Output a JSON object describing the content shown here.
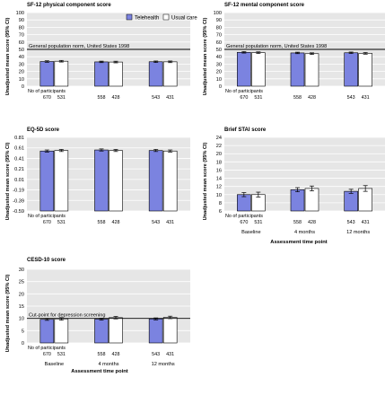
{
  "colors": {
    "telehealth": "#7b83e0",
    "usual_care": "#ffffff",
    "panel_bg": "#e6e6e6",
    "gridline": "#ffffff"
  },
  "legend": {
    "telehealth": "Telehealth",
    "usual_care": "Usual care"
  },
  "n_label": "No of participants",
  "chart_data": [
    {
      "type": "bar",
      "title": "SF-12 physical component score",
      "ylabel": "Unadjusted mean score (95% CI)",
      "ylim": [
        0,
        100
      ],
      "yticks": [
        "0",
        "10",
        "20",
        "30",
        "40",
        "50",
        "60",
        "70",
        "80",
        "90",
        "100"
      ],
      "categories": [
        "Baseline",
        "4 months",
        "12 months"
      ],
      "series": [
        {
          "name": "Telehealth",
          "values": [
            33.5,
            33.0,
            33.2
          ],
          "err": [
            1.0,
            1.0,
            1.0
          ]
        },
        {
          "name": "Usual care",
          "values": [
            33.9,
            32.8,
            33.1
          ],
          "err": [
            1.1,
            1.1,
            1.1
          ]
        }
      ],
      "n": [
        [
          "670",
          "531"
        ],
        [
          "558",
          "428"
        ],
        [
          "543",
          "431"
        ]
      ],
      "reference_line": {
        "value": 50,
        "label": "General population norm, United States 1998"
      },
      "show_category_labels": false
    },
    {
      "type": "bar",
      "title": "SF-12 mental component score",
      "ylabel": "Unadjusted mean score (95% CI)",
      "ylim": [
        0,
        100
      ],
      "yticks": [
        "0",
        "10",
        "20",
        "30",
        "40",
        "50",
        "60",
        "70",
        "80",
        "90",
        "100"
      ],
      "categories": [
        "Baseline",
        "4 months",
        "12 months"
      ],
      "series": [
        {
          "name": "Telehealth",
          "values": [
            46.0,
            45.2,
            45.4
          ],
          "err": [
            1.0,
            1.0,
            1.0
          ]
        },
        {
          "name": "Usual care",
          "values": [
            45.5,
            44.2,
            44.6
          ],
          "err": [
            1.1,
            1.1,
            1.1
          ]
        }
      ],
      "n": [
        [
          "670",
          "531"
        ],
        [
          "558",
          "428"
        ],
        [
          "543",
          "431"
        ]
      ],
      "reference_line": {
        "value": 50,
        "label": "General population norm, United States 1998"
      },
      "show_category_labels": false
    },
    {
      "type": "bar",
      "title": "EQ-5D score",
      "ylabel": "Unadjusted mean score (95% CI)",
      "ylim": [
        -0.59,
        0.81
      ],
      "yticks": [
        "0.81",
        "0.61",
        "0.41",
        "0.21",
        "0.01",
        "-0.19",
        "-0.39",
        "-0.59"
      ],
      "baseline_value": -0.59,
      "categories": [
        "Baseline",
        "4 months",
        "12 months"
      ],
      "series": [
        {
          "name": "Telehealth",
          "values": [
            0.55,
            0.57,
            0.56
          ],
          "err": [
            0.02,
            0.02,
            0.02
          ]
        },
        {
          "name": "Usual care",
          "values": [
            0.56,
            0.56,
            0.55
          ],
          "err": [
            0.02,
            0.02,
            0.02
          ]
        }
      ],
      "n": [
        [
          "670",
          "531"
        ],
        [
          "558",
          "428"
        ],
        [
          "543",
          "431"
        ]
      ],
      "show_category_labels": false
    },
    {
      "type": "bar",
      "title": "Brief STAI score",
      "ylabel": "Unadjusted mean score (95% CI)",
      "ylim": [
        6,
        24
      ],
      "yticks": [
        "6",
        "8",
        "10",
        "12",
        "14",
        "16",
        "18",
        "20",
        "22",
        "24"
      ],
      "categories": [
        "Baseline",
        "4 months",
        "12 months"
      ],
      "series": [
        {
          "name": "Telehealth",
          "values": [
            10.0,
            11.2,
            10.8
          ],
          "err": [
            0.5,
            0.5,
            0.5
          ]
        },
        {
          "name": "Usual care",
          "values": [
            10.0,
            11.5,
            11.5
          ],
          "err": [
            0.6,
            0.6,
            0.7
          ]
        }
      ],
      "n": [
        [
          "670",
          "531"
        ],
        [
          "558",
          "428"
        ],
        [
          "543",
          "431"
        ]
      ],
      "xlabel": "Assessment time point",
      "show_category_labels": true
    },
    {
      "type": "bar",
      "title": "CESD-10 score",
      "ylabel": "Unadjusted mean score (95% CI)",
      "ylim": [
        0,
        30
      ],
      "yticks": [
        "0",
        "5",
        "10",
        "15",
        "20",
        "25",
        "30"
      ],
      "categories": [
        "Baseline",
        "4 months",
        "12 months"
      ],
      "series": [
        {
          "name": "Telehealth",
          "values": [
            9.6,
            9.7,
            9.8
          ],
          "err": [
            0.4,
            0.4,
            0.4
          ]
        },
        {
          "name": "Usual care",
          "values": [
            9.8,
            10.3,
            10.4
          ],
          "err": [
            0.5,
            0.5,
            0.5
          ]
        }
      ],
      "n": [
        [
          "670",
          "531"
        ],
        [
          "558",
          "428"
        ],
        [
          "543",
          "431"
        ]
      ],
      "reference_line": {
        "value": 10,
        "label": "Cut-point for depression screening"
      },
      "xlabel": "Assessment time point",
      "show_category_labels": true
    }
  ]
}
